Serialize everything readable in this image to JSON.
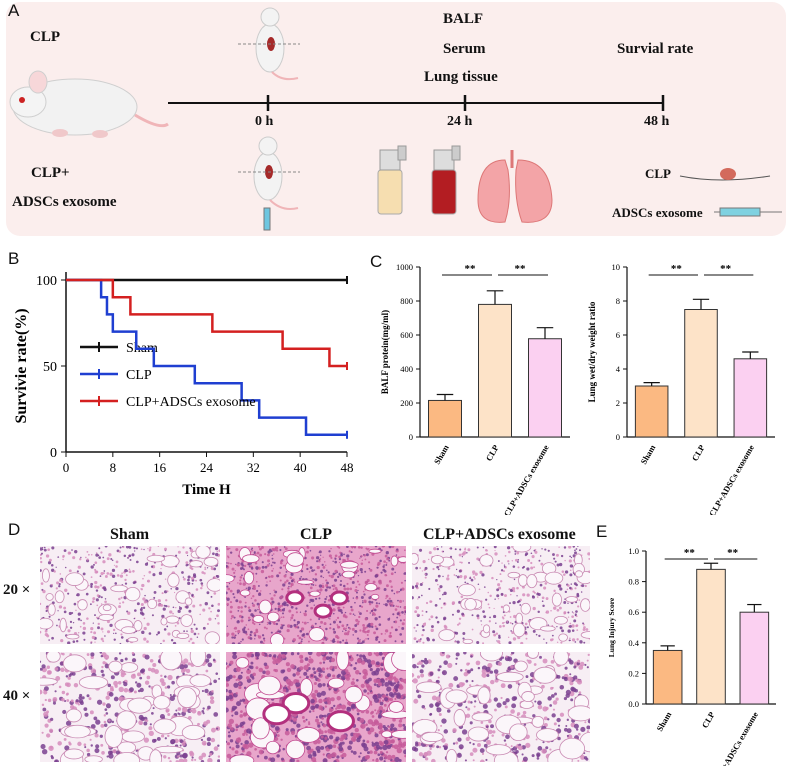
{
  "panelA": {
    "label": "A",
    "group1": "CLP",
    "group2_line1": "CLP+",
    "group2_line2": "ADSCs exosome",
    "timepoints": [
      "0 h",
      "24 h",
      "48 h"
    ],
    "samples": [
      "BALF",
      "Serum",
      "Lung tissue"
    ],
    "endpoint": "Survial rate",
    "legend_clp": "CLP",
    "legend_exo": "ADSCs exosome",
    "background": "#fbeeed"
  },
  "panelB": {
    "label": "B",
    "chart_data": {
      "type": "line",
      "subtype": "kaplan-meier step",
      "xlabel": "Time H",
      "ylabel": "Survivie rate(%)",
      "xticks": [
        0,
        8,
        16,
        24,
        32,
        40,
        48
      ],
      "yticks": [
        0,
        50,
        100
      ],
      "xlim": [
        0,
        48
      ],
      "ylim": [
        0,
        100
      ],
      "series": [
        {
          "name": "Sham",
          "color": "#111111",
          "x": [
            0,
            48
          ],
          "y": [
            100,
            100
          ]
        },
        {
          "name": "CLP",
          "color": "#1f3fd1",
          "x": [
            0,
            6,
            7,
            8,
            12,
            15,
            22,
            30,
            33,
            41,
            48
          ],
          "y": [
            100,
            90,
            80,
            70,
            60,
            50,
            40,
            30,
            20,
            10,
            10
          ]
        },
        {
          "name": "CLP+ADSCs exosome",
          "color": "#d42020",
          "x": [
            0,
            8,
            11,
            25,
            37,
            45,
            48
          ],
          "y": [
            100,
            90,
            80,
            70,
            60,
            50,
            50
          ]
        }
      ]
    }
  },
  "panelC": {
    "label": "C",
    "chart_data": [
      {
        "type": "bar",
        "ylabel": "BALF protein(mg/ml)",
        "categories": [
          "Sham",
          "CLP",
          "CLP+ADSCs exosome"
        ],
        "values": [
          215,
          780,
          578
        ],
        "errors": [
          35,
          80,
          65
        ],
        "ylim": [
          0,
          1000
        ],
        "yticks": [
          0,
          200,
          400,
          600,
          800,
          1000
        ],
        "significance": [
          "**",
          "**"
        ]
      },
      {
        "type": "bar",
        "ylabel": "Lung wet/dry weight ratio",
        "categories": [
          "Sham",
          "CLP",
          "CLP+ADSCs exosome"
        ],
        "values": [
          3.0,
          7.5,
          4.6
        ],
        "errors": [
          0.2,
          0.6,
          0.4
        ],
        "ylim": [
          0,
          10
        ],
        "yticks": [
          0,
          2,
          4,
          6,
          8,
          10
        ],
        "significance": [
          "**",
          "**"
        ]
      }
    ]
  },
  "panelD": {
    "label": "D",
    "columns": [
      "Sham",
      "CLP",
      "CLP+ADSCs exosome"
    ],
    "rows": [
      "20 ×",
      "40 ×"
    ]
  },
  "panelE": {
    "label": "E",
    "chart_data": {
      "type": "bar",
      "ylabel": "Lung Injury Score",
      "categories": [
        "Sham",
        "CLP",
        "CLP+ADSCs exosome"
      ],
      "values": [
        0.35,
        0.88,
        0.6
      ],
      "errors": [
        0.03,
        0.04,
        0.05
      ],
      "ylim": [
        0,
        1.0
      ],
      "yticks": [
        0.0,
        0.2,
        0.4,
        0.6,
        0.8,
        1.0
      ],
      "significance": [
        "**",
        "**"
      ]
    }
  },
  "colors": {
    "sham": "#fbb982",
    "clp": "#fde3c8",
    "exo": "#fbd0f1",
    "tissue": "#e9a7c8"
  }
}
